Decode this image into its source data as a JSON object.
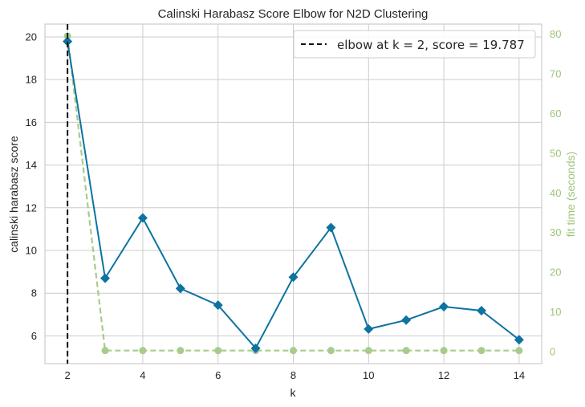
{
  "chart_data": {
    "type": "line",
    "title": "Calinski Harabasz Score Elbow for N2D Clustering",
    "xlabel": "k",
    "ylabel": "calinski harabasz score",
    "y2label": "fit time (seconds)",
    "x": [
      2,
      3,
      4,
      5,
      6,
      7,
      8,
      9,
      10,
      11,
      12,
      13,
      14
    ],
    "xlim": [
      1.4,
      14.6
    ],
    "ylim": [
      4.7,
      20.6
    ],
    "y2lim": [
      -3.0,
      82.5
    ],
    "xticks": [
      "2",
      "4",
      "6",
      "8",
      "10",
      "12",
      "14"
    ],
    "yticks": [
      "6",
      "8",
      "10",
      "12",
      "14",
      "16",
      "18",
      "20"
    ],
    "y2ticks": [
      "0",
      "10",
      "20",
      "30",
      "40",
      "50",
      "60",
      "70",
      "80"
    ],
    "series": [
      {
        "axis": "left",
        "color": "#0d73a0",
        "marker": "diamond",
        "values": [
          19.787,
          8.7,
          11.52,
          8.22,
          7.44,
          5.42,
          8.75,
          11.07,
          6.32,
          6.74,
          7.37,
          7.18,
          5.82
        ]
      },
      {
        "axis": "right",
        "color": "#a8cc8c",
        "marker": "circle",
        "dashed": true,
        "values": [
          79.5,
          0.3,
          0.3,
          0.3,
          0.3,
          0.3,
          0.3,
          0.3,
          0.3,
          0.3,
          0.3,
          0.3,
          0.3
        ]
      }
    ],
    "elbow": {
      "k": 2,
      "score": 19.787
    },
    "legend": {
      "text": "elbow at k = 2, score = 19.787",
      "placement": "top-right"
    },
    "grid": true
  }
}
